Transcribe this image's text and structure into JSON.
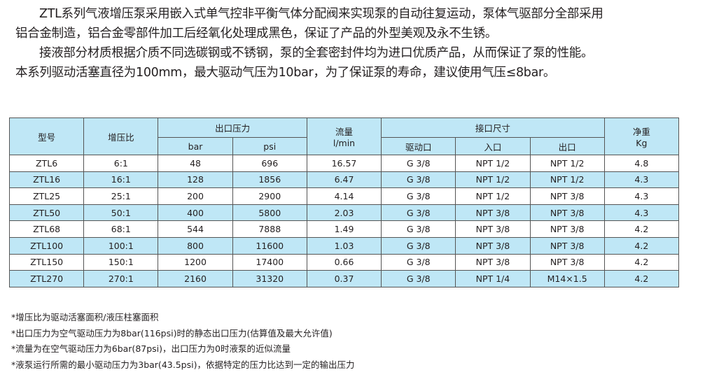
{
  "intro": [
    "ZTL系列气液增压泵采用嵌入式单气控非平衡气体分配阀来实现泵的自动往复运动，泵体气驱部分全部采用",
    "铝合金制造，铝合金零部件加工后经氧化处理成黑色，保证了产品的外型美观及永不生锈。",
    "接液部分材质根据介质不同选碳钢或不锈钢，泵的全套密封件均为进口优质产品，从而保证了泵的性能。",
    "本系列驱动活塞直径为100mm，最大驱动气压为10bar，为了保证泵的寿命，建议使用气压≤8bar。"
  ],
  "table": {
    "headers": {
      "model": "型号",
      "ratio": "增压比",
      "outlet_pressure": "出口压力",
      "bar": "bar",
      "psi": "psi",
      "flow": "流量",
      "flow_unit": "l/min",
      "ports": "接口尺寸",
      "drive_port": "驱动口",
      "inlet": "入口",
      "outlet": "出口",
      "weight": "净重",
      "weight_unit": "Kg"
    },
    "rows": [
      [
        "ZTL6",
        "6:1",
        "48",
        "696",
        "16.57",
        "G 3/8",
        "NPT 1/2",
        "NPT 1/2",
        "4.8"
      ],
      [
        "ZTL16",
        "16:1",
        "128",
        "1856",
        "6.47",
        "G 3/8",
        "NPT 1/2",
        "NPT 1/2",
        "4.3"
      ],
      [
        "ZTL25",
        "25:1",
        "200",
        "2900",
        "4.14",
        "G 3/8",
        "NPT 1/2",
        "NPT 3/8",
        "4.3"
      ],
      [
        "ZTL50",
        "50:1",
        "400",
        "5800",
        "2.03",
        "G 3/8",
        "NPT 3/8",
        "NPT 3/8",
        "4.3"
      ],
      [
        "ZTL68",
        "68:1",
        "544",
        "7888",
        "1.49",
        "G 3/8",
        "NPT 3/8",
        "NPT 3/8",
        "4.2"
      ],
      [
        "ZTL100",
        "100:1",
        "800",
        "11600",
        "1.03",
        "G 3/8",
        "NPT 3/8",
        "NPT 3/8",
        "4.2"
      ],
      [
        "ZTL150",
        "150:1",
        "1200",
        "17400",
        "0.66",
        "G 3/8",
        "NPT 3/8",
        "NPT 3/8",
        "4.2"
      ],
      [
        "ZTL270",
        "270:1",
        "2160",
        "31320",
        "0.37",
        "G 3/8",
        "NPT 1/4",
        "M14×1.5",
        "4.2"
      ]
    ]
  },
  "notes": [
    "*增压比为驱动活塞面积/液压柱塞面积",
    "*出口压力为空气驱动压力为8bar(116psi)时的静态出口压力(估算值及最大允许值)",
    "*流量为在空气驱动压力为6bar(87psi)，出口压力为0时液泵的近似流量",
    "*液泵运行所需的最小驱动压力为3bar(43.5psi)，依据特定的压力比达到一定的输出压力"
  ],
  "colors": {
    "header_bg": "#bfe7f6",
    "alt_row_bg": "#bfe7f6",
    "border": "#555555"
  }
}
